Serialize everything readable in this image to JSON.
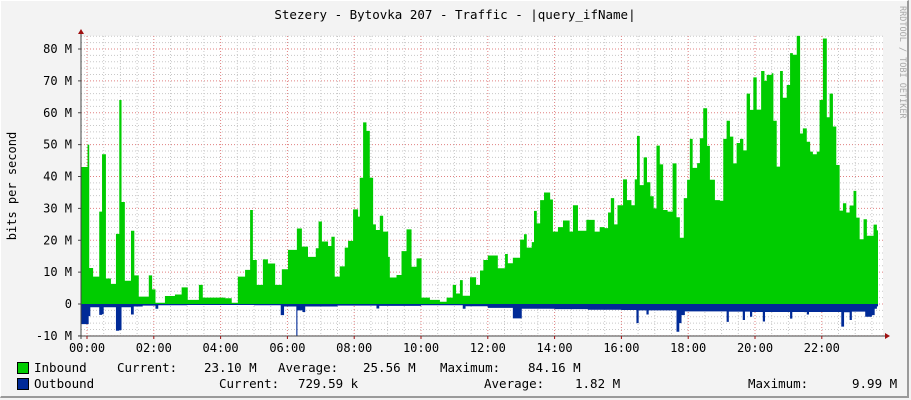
{
  "chart_data": {
    "type": "area",
    "title": "Stezery - Bytovka 207 - Traffic - |query_ifName|",
    "ylabel": "bits per second",
    "watermark": "RRDTOOL / TOBI OETIKER",
    "ylim": [
      -10,
      84
    ],
    "yticks": [
      -10,
      0,
      10,
      20,
      30,
      40,
      50,
      60,
      70,
      80
    ],
    "ytick_labels": [
      "-10 M",
      "0",
      "10 M",
      "20 M",
      "30 M",
      "40 M",
      "50 M",
      "60 M",
      "70 M",
      "80 M"
    ],
    "xtick_labels": [
      "00:00",
      "02:00",
      "04:00",
      "06:00",
      "08:00",
      "10:00",
      "12:00",
      "14:00",
      "16:00",
      "18:00",
      "20:00",
      "22:00"
    ],
    "grid": true,
    "units": "M",
    "colors": {
      "inbound": "#00cc00",
      "outbound": "#002a97",
      "major_grid": "#e08080",
      "minor_grid": "#c8c8c8",
      "canvas": "#f3f3f3",
      "plot": "#ffffff"
    },
    "series": [
      {
        "name": "Inbound",
        "color": "#00cc00",
        "points": [
          [
            "00:00",
            43
          ],
          [
            "00:01",
            50
          ],
          [
            "00:04",
            11.3
          ],
          [
            "00:11",
            8.6
          ],
          [
            "00:20",
            8.6
          ],
          [
            "00:22",
            29
          ],
          [
            "00:27",
            47
          ],
          [
            "00:34",
            8
          ],
          [
            "00:43",
            6.3
          ],
          [
            "00:52",
            22
          ],
          [
            "00:58",
            64
          ],
          [
            "01:02",
            32
          ],
          [
            "01:08",
            7.3
          ],
          [
            "01:19",
            23
          ],
          [
            "01:25",
            9
          ],
          [
            "01:33",
            2.3
          ],
          [
            "01:44",
            2.3
          ],
          [
            "01:51",
            9
          ],
          [
            "01:57",
            4.6
          ],
          [
            "02:03",
            0.4
          ],
          [
            "02:20",
            2.5
          ],
          [
            "02:38",
            3
          ],
          [
            "02:50",
            5.2
          ],
          [
            "03:01",
            1.3
          ],
          [
            "03:21",
            6
          ],
          [
            "03:28",
            2
          ],
          [
            "04:08",
            1.8
          ],
          [
            "04:20",
            0.4
          ],
          [
            "04:31",
            8.6
          ],
          [
            "04:44",
            10.7
          ],
          [
            "04:53",
            29.5
          ],
          [
            "04:58",
            13.8
          ],
          [
            "05:05",
            6
          ],
          [
            "05:16",
            14
          ],
          [
            "05:25",
            12.7
          ],
          [
            "05:38",
            6
          ],
          [
            "05:50",
            10.9
          ],
          [
            "06:01",
            17
          ],
          [
            "06:17",
            23.7
          ],
          [
            "06:26",
            18
          ],
          [
            "06:37",
            14.8
          ],
          [
            "06:51",
            17.5
          ],
          [
            "06:56",
            25.9
          ],
          [
            "07:02",
            19.6
          ],
          [
            "07:13",
            18.2
          ],
          [
            "07:19",
            21.1
          ],
          [
            "07:25",
            8.6
          ],
          [
            "07:34",
            11.8
          ],
          [
            "07:43",
            17.7
          ],
          [
            "07:49",
            19.8
          ],
          [
            "07:58",
            29.7
          ],
          [
            "08:07",
            27.4
          ],
          [
            "08:10",
            39.6
          ],
          [
            "08:16",
            57
          ],
          [
            "08:22",
            54.3
          ],
          [
            "08:28",
            39.6
          ],
          [
            "08:34",
            25
          ],
          [
            "08:39",
            23.2
          ],
          [
            "08:46",
            27.7
          ],
          [
            "08:52",
            22.7
          ],
          [
            "09:01",
            14.8
          ],
          [
            "09:04",
            8.3
          ],
          [
            "09:16",
            9.1
          ],
          [
            "09:25",
            16.6
          ],
          [
            "09:34",
            23.4
          ],
          [
            "09:43",
            11.7
          ],
          [
            "09:52",
            14.3
          ],
          [
            "10:01",
            2
          ],
          [
            "10:16",
            1.3
          ],
          [
            "10:34",
            0.7
          ],
          [
            "10:46",
            2
          ],
          [
            "10:57",
            6
          ],
          [
            "11:03",
            3.3
          ],
          [
            "11:10",
            7.5
          ],
          [
            "11:15",
            2.6
          ],
          [
            "11:28",
            8.4
          ],
          [
            "11:39",
            6
          ],
          [
            "11:46",
            10.5
          ],
          [
            "11:52",
            13.8
          ],
          [
            "12:00",
            15.2
          ],
          [
            "12:09",
            15.2
          ],
          [
            "12:18",
            11.2
          ],
          [
            "12:31",
            15.7
          ],
          [
            "12:36",
            12.8
          ],
          [
            "12:45",
            14.5
          ],
          [
            "12:58",
            20.2
          ],
          [
            "13:05",
            21.9
          ],
          [
            "13:10",
            17.7
          ],
          [
            "13:19",
            19.4
          ],
          [
            "13:23",
            29.2
          ],
          [
            "13:28",
            25.3
          ],
          [
            "13:34",
            32.6
          ],
          [
            "13:41",
            35
          ],
          [
            "13:52",
            32.8
          ],
          [
            "13:57",
            22.7
          ],
          [
            "14:06",
            24.1
          ],
          [
            "14:15",
            26.2
          ],
          [
            "14:27",
            22.7
          ],
          [
            "14:33",
            31
          ],
          [
            "14:42",
            23
          ],
          [
            "14:57",
            26.4
          ],
          [
            "15:12",
            22.7
          ],
          [
            "15:21",
            24.1
          ],
          [
            "15:30",
            23.8
          ],
          [
            "15:36",
            28.7
          ],
          [
            "15:41",
            33.2
          ],
          [
            "15:47",
            25
          ],
          [
            "15:53",
            31
          ],
          [
            "16:03",
            39.1
          ],
          [
            "16:10",
            32.6
          ],
          [
            "16:18",
            31
          ],
          [
            "16:24",
            39.1
          ],
          [
            "16:28",
            52.7
          ],
          [
            "16:33",
            37.3
          ],
          [
            "16:40",
            46
          ],
          [
            "16:46",
            38.2
          ],
          [
            "16:52",
            33.8
          ],
          [
            "16:58",
            30
          ],
          [
            "17:03",
            49.7
          ],
          [
            "17:09",
            43.8
          ],
          [
            "17:15",
            29.5
          ],
          [
            "17:23",
            29
          ],
          [
            "17:32",
            44.1
          ],
          [
            "17:39",
            27.2
          ],
          [
            "17:45",
            20.8
          ],
          [
            "17:52",
            33.2
          ],
          [
            "17:58",
            39
          ],
          [
            "18:03",
            51.8
          ],
          [
            "18:08",
            42.7
          ],
          [
            "18:16",
            44.2
          ],
          [
            "18:21",
            52
          ],
          [
            "18:27",
            61.4
          ],
          [
            "18:34",
            49.6
          ],
          [
            "18:39",
            39
          ],
          [
            "18:48",
            32.6
          ],
          [
            "18:57",
            32.4
          ],
          [
            "19:03",
            51.8
          ],
          [
            "19:09",
            57.5
          ],
          [
            "19:15",
            52.5
          ],
          [
            "19:21",
            44.1
          ],
          [
            "19:27",
            50.5
          ],
          [
            "19:33",
            51.8
          ],
          [
            "19:39",
            48.2
          ],
          [
            "19:45",
            66
          ],
          [
            "19:51",
            60.9
          ],
          [
            "19:57",
            71.1
          ],
          [
            "20:03",
            61
          ],
          [
            "20:11",
            73.1
          ],
          [
            "20:17",
            70
          ],
          [
            "20:21",
            71.9
          ],
          [
            "20:30",
            72.4
          ],
          [
            "20:33",
            57.5
          ],
          [
            "20:39",
            43.1
          ],
          [
            "20:45",
            73.1
          ],
          [
            "20:50",
            64.7
          ],
          [
            "20:57",
            68.7
          ],
          [
            "21:03",
            78.7
          ],
          [
            "21:08",
            78.2
          ],
          [
            "21:15",
            84.1
          ],
          [
            "21:21",
            53.5
          ],
          [
            "21:26",
            55.1
          ],
          [
            "21:33",
            50.9
          ],
          [
            "21:39",
            47.8
          ],
          [
            "21:44",
            47
          ],
          [
            "21:51",
            47.8
          ],
          [
            "21:56",
            64
          ],
          [
            "22:02",
            83.3
          ],
          [
            "22:09",
            58.6
          ],
          [
            "22:14",
            66
          ],
          [
            "22:20",
            55.7
          ],
          [
            "22:26",
            43.6
          ],
          [
            "22:32",
            29.3
          ],
          [
            "22:38",
            31.6
          ],
          [
            "22:44",
            28.7
          ],
          [
            "22:50",
            30.9
          ],
          [
            "22:57",
            35.5
          ],
          [
            "23:02",
            27.1
          ],
          [
            "23:08",
            20.3
          ],
          [
            "23:15",
            26.6
          ],
          [
            "23:21",
            21.4
          ],
          [
            "23:27",
            21.4
          ],
          [
            "23:33",
            24.9
          ],
          [
            "23:39",
            23.1
          ]
        ]
      },
      {
        "name": "Outbound",
        "color": "#002a97",
        "points": [
          [
            "00:00",
            -6.3
          ],
          [
            "00:03",
            -3.8
          ],
          [
            "00:06",
            -1
          ],
          [
            "00:22",
            -3.4
          ],
          [
            "00:27",
            -3.2
          ],
          [
            "00:30",
            -1
          ],
          [
            "00:52",
            -8.4
          ],
          [
            "00:58",
            -8.2
          ],
          [
            "01:02",
            -1
          ],
          [
            "01:19",
            -3.3
          ],
          [
            "01:24",
            -0.8
          ],
          [
            "01:40",
            -0.5
          ],
          [
            "02:03",
            -1.5
          ],
          [
            "02:08",
            -0.4
          ],
          [
            "03:00",
            -0.3
          ],
          [
            "05:00",
            -0.4
          ],
          [
            "05:48",
            -3.5
          ],
          [
            "05:54",
            -0.8
          ],
          [
            "06:16",
            -9.99
          ],
          [
            "06:18",
            -2
          ],
          [
            "06:27",
            -2.5
          ],
          [
            "06:32",
            -0.8
          ],
          [
            "07:30",
            -0.5
          ],
          [
            "08:40",
            -1.4
          ],
          [
            "08:45",
            -0.6
          ],
          [
            "10:00",
            -0.4
          ],
          [
            "11:15",
            -1.5
          ],
          [
            "11:20",
            -0.7
          ],
          [
            "12:00",
            -1.2
          ],
          [
            "12:45",
            -4.5
          ],
          [
            "13:01",
            -1.5
          ],
          [
            "14:00",
            -1.6
          ],
          [
            "15:00",
            -1.8
          ],
          [
            "16:00",
            -1.9
          ],
          [
            "16:27",
            -6
          ],
          [
            "16:31",
            -2
          ],
          [
            "16:45",
            -3.3
          ],
          [
            "16:49",
            -2
          ],
          [
            "17:39",
            -8.7
          ],
          [
            "17:44",
            -6
          ],
          [
            "17:48",
            -3.5
          ],
          [
            "17:54",
            -2.3
          ],
          [
            "19:09",
            -5.6
          ],
          [
            "19:13",
            -2.4
          ],
          [
            "19:38",
            -5
          ],
          [
            "19:42",
            -2.4
          ],
          [
            "19:51",
            -4
          ],
          [
            "19:55",
            -2.5
          ],
          [
            "20:14",
            -5.5
          ],
          [
            "20:18",
            -2.5
          ],
          [
            "21:03",
            -4.6
          ],
          [
            "21:07",
            -2.5
          ],
          [
            "21:33",
            -3.3
          ],
          [
            "21:37",
            -2.5
          ],
          [
            "22:35",
            -7.1
          ],
          [
            "22:40",
            -2.6
          ],
          [
            "22:50",
            -5
          ],
          [
            "22:54",
            -2.4
          ],
          [
            "23:18",
            -4
          ],
          [
            "23:30",
            -3.5
          ],
          [
            "23:35",
            -1.5
          ],
          [
            "23:39",
            -0.73
          ]
        ]
      }
    ]
  },
  "legend": {
    "inbound": {
      "label": "Inbound",
      "current_label": "Current:",
      "current": "23.10 M",
      "average_label": "Average:",
      "average": "25.56 M",
      "maximum_label": "Maximum:",
      "maximum": "84.16 M"
    },
    "outbound": {
      "label": "Outbound",
      "current_label": "Current:",
      "current": "729.59 k",
      "average_label": "Average:",
      "average": "1.82 M",
      "maximum_label": "Maximum:",
      "maximum": "9.99 M"
    }
  }
}
